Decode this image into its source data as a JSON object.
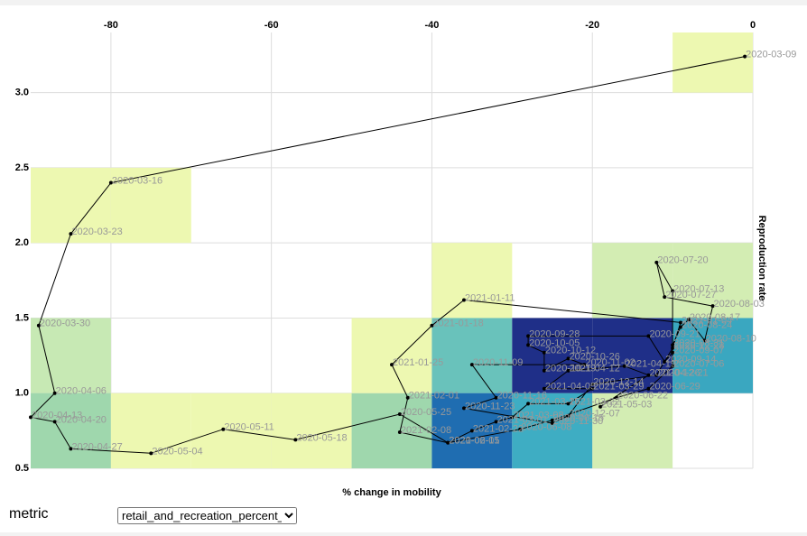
{
  "chart_data": {
    "type": "scatter",
    "x_label": "% change in mobility",
    "y_label": "Reproduction rate",
    "xlim": [
      -90,
      0
    ],
    "ylim": [
      0.5,
      3.4
    ],
    "xticks": [
      -80,
      -60,
      -40,
      -20,
      0
    ],
    "yticks": [
      0.5,
      {
        "value": 1.0,
        "label": "1.0"
      },
      1.5,
      {
        "value": 2.0,
        "label": "2.0"
      },
      2.5,
      {
        "value": 3.0,
        "label": "3.0"
      }
    ],
    "grid": true,
    "line_color": "#000000",
    "point_color": "#000000",
    "label_color": "#999999",
    "cells": [
      {
        "x": [
          -10,
          0
        ],
        "y": [
          3.0,
          3.5
        ],
        "count": 1,
        "color": "#edf8b1"
      },
      {
        "x": [
          -90,
          -80
        ],
        "y": [
          2.0,
          2.5
        ],
        "count": 1,
        "color": "#edf8b1"
      },
      {
        "x": [
          -80,
          -70
        ],
        "y": [
          2.0,
          2.5
        ],
        "count": 1,
        "color": "#edf8b1"
      },
      {
        "x": [
          -90,
          -80
        ],
        "y": [
          1.0,
          1.5
        ],
        "count": 2,
        "color": "#c7e9b4"
      },
      {
        "x": [
          -90,
          -80
        ],
        "y": [
          0.5,
          1.0
        ],
        "count": 3,
        "color": "#9fd7ad"
      },
      {
        "x": [
          -80,
          -70
        ],
        "y": [
          0.5,
          1.0
        ],
        "count": 1,
        "color": "#edf8b1"
      },
      {
        "x": [
          -70,
          -60
        ],
        "y": [
          0.5,
          1.0
        ],
        "count": 1,
        "color": "#edf8b1"
      },
      {
        "x": [
          -60,
          -50
        ],
        "y": [
          0.5,
          1.0
        ],
        "count": 1,
        "color": "#edf8b1"
      },
      {
        "x": [
          -50,
          -40
        ],
        "y": [
          0.5,
          1.0
        ],
        "count": 3,
        "color": "#9fd7ad"
      },
      {
        "x": [
          -50,
          -40
        ],
        "y": [
          1.0,
          1.5
        ],
        "count": 1,
        "color": "#edf8b1"
      },
      {
        "x": [
          -40,
          -30
        ],
        "y": [
          1.5,
          2.0
        ],
        "count": 1,
        "color": "#edf8b1"
      },
      {
        "x": [
          -40,
          -30
        ],
        "y": [
          1.0,
          1.5
        ],
        "count": 4,
        "color": "#69c2bb"
      },
      {
        "x": [
          -40,
          -30
        ],
        "y": [
          0.5,
          1.0
        ],
        "count": 8,
        "color": "#1f6db1"
      },
      {
        "x": [
          -30,
          -20
        ],
        "y": [
          1.0,
          1.5
        ],
        "count": 14,
        "color": "#1f2f88"
      },
      {
        "x": [
          -30,
          -20
        ],
        "y": [
          0.5,
          1.0
        ],
        "count": 6,
        "color": "#3eadc3"
      },
      {
        "x": [
          -20,
          -10
        ],
        "y": [
          1.0,
          1.5
        ],
        "count": 14,
        "color": "#1f2f88"
      },
      {
        "x": [
          -20,
          -10
        ],
        "y": [
          0.5,
          1.0
        ],
        "count": 2,
        "color": "#d3edb3"
      },
      {
        "x": [
          -20,
          -10
        ],
        "y": [
          1.5,
          2.0
        ],
        "count": 2,
        "color": "#d3edb3"
      },
      {
        "x": [
          -10,
          0
        ],
        "y": [
          1.5,
          2.0
        ],
        "count": 2,
        "color": "#d3edb3"
      },
      {
        "x": [
          -10,
          0
        ],
        "y": [
          1.0,
          1.5
        ],
        "count": 6,
        "color": "#3aa7c0"
      }
    ],
    "dates": [
      "2020-03-09",
      "2020-03-16",
      "2020-03-23",
      "2020-03-30",
      "2020-04-06",
      "2020-04-13",
      "2020-04-20",
      "2020-04-27",
      "2020-05-04",
      "2020-05-11",
      "2020-05-18",
      "2020-05-25",
      "2020-06-01",
      "2020-06-08",
      "2020-06-15",
      "2020-06-22",
      "2020-06-29",
      "2020-07-06",
      "2020-07-13",
      "2020-07-20",
      "2020-07-27",
      "2020-08-03",
      "2020-08-10",
      "2020-08-17",
      "2020-08-24",
      "2020-08-31",
      "2020-09-07",
      "2020-09-14",
      "2020-09-21",
      "2020-09-28",
      "2020-10-05",
      "2020-10-12",
      "2020-10-19",
      "2020-10-26",
      "2020-11-02",
      "2020-11-09",
      "2020-11-16",
      "2020-11-23",
      "2020-11-30",
      "2020-12-07",
      "2020-12-14",
      "2020-12-21",
      "2020-12-28",
      "2021-01-04",
      "2021-01-11",
      "2021-01-18",
      "2021-01-25",
      "2021-02-01",
      "2021-02-08",
      "2021-02-15",
      "2021-02-22",
      "2021-03-01",
      "2021-03-08",
      "2021-03-15",
      "2021-03-22",
      "2021-03-29",
      "2021-04-05",
      "2021-04-12",
      "2021-04-19",
      "2021-04-26",
      "2021-05-03"
    ],
    "mobility": [
      -1,
      -80,
      -85,
      -89,
      -87,
      -90,
      -87,
      -85,
      -75,
      -66,
      -57,
      -44,
      -38,
      -29,
      -25,
      -17,
      -13,
      -10,
      -10,
      -12,
      -11,
      -5,
      -6,
      -8,
      -9,
      -10,
      -10,
      -11,
      -13,
      -28,
      -28,
      -26,
      -26,
      -23,
      -21,
      -35,
      -32,
      -36,
      -25,
      -23,
      -20,
      -12,
      -10,
      -9,
      -36,
      -40,
      -45,
      -43,
      -44,
      -38,
      -35,
      -32,
      -30,
      -28,
      -23,
      -20,
      -26,
      -23,
      -16,
      -13,
      -19
    ],
    "r": [
      3.24,
      2.4,
      2.06,
      1.45,
      1.0,
      0.84,
      0.81,
      0.63,
      0.6,
      0.76,
      0.69,
      0.86,
      0.67,
      0.76,
      0.82,
      0.97,
      1.03,
      1.18,
      1.68,
      1.87,
      1.64,
      1.58,
      1.35,
      1.49,
      1.44,
      1.32,
      1.27,
      1.21,
      1.38,
      1.38,
      1.32,
      1.27,
      1.15,
      1.23,
      1.19,
      1.19,
      0.97,
      0.9,
      0.8,
      0.85,
      1.06,
      1.12,
      1.3,
      1.47,
      1.62,
      1.45,
      1.19,
      0.97,
      0.74,
      0.67,
      0.75,
      0.81,
      0.84,
      0.93,
      0.93,
      1.03,
      1.03,
      1.15,
      1.18,
      1.12,
      0.91
    ]
  },
  "controls": {
    "label": "metric",
    "selected": "retail_and_recreation_percent_change_from_baseline"
  }
}
